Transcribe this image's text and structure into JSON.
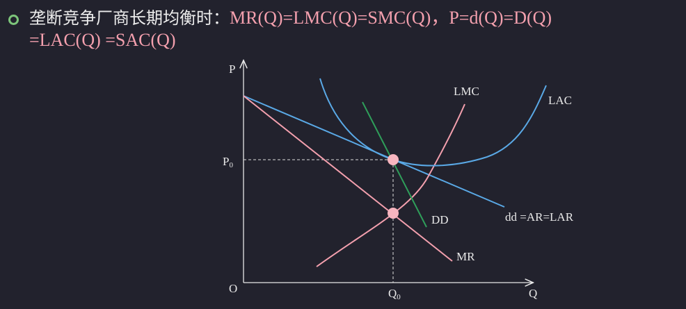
{
  "header": {
    "lead": "垄断竞争厂商长期均衡时：",
    "formula_line1": "MR(Q)=LMC(Q)=SMC(Q)，P=d(Q)=D(Q)",
    "formula_line2": "=LAC(Q) =SAC(Q)"
  },
  "diagram": {
    "axis_y": "P",
    "axis_x": "Q",
    "origin": "O",
    "price_label": {
      "main": "P",
      "sub": "0"
    },
    "quantity_label": {
      "main": "Q",
      "sub": "0"
    },
    "curves": {
      "lmc": "LMC",
      "lac": "LAC",
      "dd_big": "DD",
      "dd_small": "dd =AR=LAR",
      "mr": "MR"
    }
  }
}
